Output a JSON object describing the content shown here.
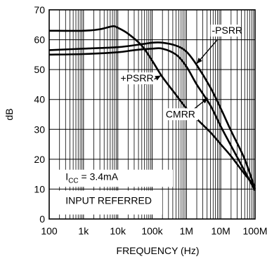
{
  "chart_data": {
    "type": "line",
    "xscale": "log",
    "xlim": [
      100,
      100000000
    ],
    "ylim": [
      0,
      70
    ],
    "grid": true,
    "xlabel": "FREQUENCY (Hz)",
    "ylabel": "dB",
    "x_ticks": [
      100,
      1000,
      10000,
      100000,
      1000000,
      10000000,
      100000000
    ],
    "x_tick_labels": [
      "100",
      "1k",
      "10k",
      "100k",
      "1M",
      "10M",
      "100M"
    ],
    "y_ticks": [
      0,
      10,
      20,
      30,
      40,
      50,
      60,
      70
    ],
    "y_tick_labels": [
      "0",
      "10",
      "20",
      "30",
      "40",
      "50",
      "60",
      "70"
    ],
    "series": [
      {
        "name": "+PSRR",
        "points": [
          [
            100,
            63
          ],
          [
            1000,
            63
          ],
          [
            3000,
            63.5
          ],
          [
            7000,
            64.5
          ],
          [
            10000,
            64
          ],
          [
            20000,
            62
          ],
          [
            50000,
            58
          ],
          [
            100000,
            53
          ],
          [
            200000,
            47.5
          ],
          [
            500000,
            41.5
          ],
          [
            1000000,
            37
          ],
          [
            2000000,
            33.5
          ],
          [
            5000000,
            29
          ],
          [
            10000000,
            25
          ],
          [
            20000000,
            21
          ],
          [
            50000000,
            15
          ],
          [
            100000000,
            11
          ]
        ]
      },
      {
        "name": "-PSRR",
        "points": [
          [
            100,
            56.5
          ],
          [
            1000,
            57
          ],
          [
            10000,
            57.5
          ],
          [
            50000,
            58.5
          ],
          [
            100000,
            59
          ],
          [
            200000,
            59
          ],
          [
            500000,
            58
          ],
          [
            1000000,
            56
          ],
          [
            2000000,
            51.5
          ],
          [
            5000000,
            44
          ],
          [
            10000000,
            37
          ],
          [
            20000000,
            29.5
          ],
          [
            50000000,
            20
          ],
          [
            100000000,
            10
          ]
        ]
      },
      {
        "name": "CMRR",
        "points": [
          [
            100,
            55
          ],
          [
            1000,
            55.2
          ],
          [
            10000,
            55.8
          ],
          [
            30000,
            56.5
          ],
          [
            100000,
            57
          ],
          [
            200000,
            57
          ],
          [
            500000,
            55
          ],
          [
            1000000,
            51
          ],
          [
            2000000,
            45
          ],
          [
            5000000,
            38
          ],
          [
            10000000,
            31
          ],
          [
            20000000,
            24.5
          ],
          [
            50000000,
            16
          ],
          [
            100000000,
            9.5
          ]
        ]
      }
    ],
    "annotations": [
      {
        "text": "-PSRR",
        "x": 5500000,
        "y": 62
      },
      {
        "text": "+PSRR",
        "x": 12000,
        "y": 46
      },
      {
        "text": "CMRR",
        "x": 250000,
        "y": 34
      },
      {
        "text": "INPUT REFERRED",
        "x": 300,
        "y": 5
      }
    ],
    "icc_label": {
      "main": "I",
      "sub": "CC",
      "rest": " = 3.4mA"
    }
  }
}
